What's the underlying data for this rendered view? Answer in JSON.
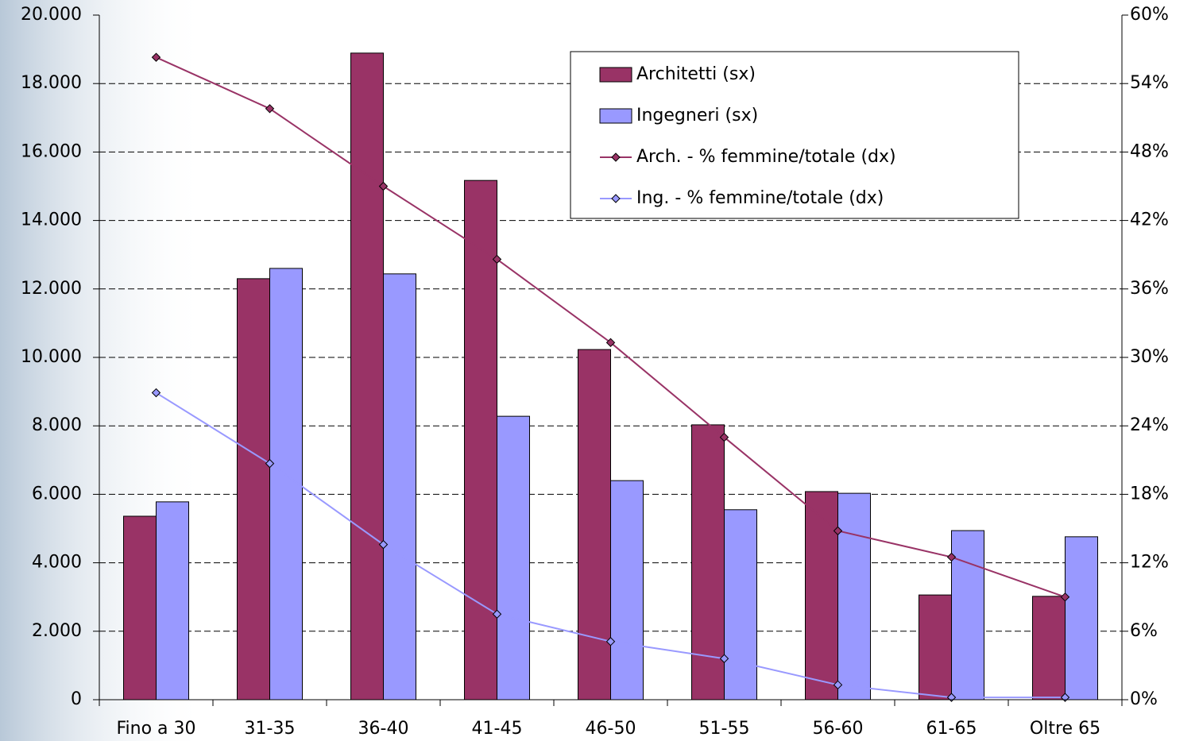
{
  "chart_data": {
    "type": "bar",
    "categories": [
      "Fino a 30",
      "31-35",
      "36-40",
      "41-45",
      "46-50",
      "51-55",
      "56-60",
      "61-65",
      "Oltre 65"
    ],
    "series": [
      {
        "name": "Architetti (sx)",
        "type": "bar",
        "color": "#993366",
        "values": [
          5360,
          12300,
          18890,
          15170,
          10230,
          8030,
          6080,
          3060,
          3020
        ]
      },
      {
        "name": "Ingegneri (sx)",
        "type": "bar",
        "color": "#9999ff",
        "values": [
          5780,
          12600,
          12440,
          8280,
          6400,
          5550,
          6030,
          4940,
          4760
        ]
      },
      {
        "name": "Arch. - % femmine/totale (dx)",
        "type": "line",
        "axis": "y2",
        "color": "#993366",
        "values": [
          56.3,
          51.8,
          45.0,
          38.6,
          31.3,
          23.0,
          14.8,
          12.5,
          9.0
        ]
      },
      {
        "name": "Ing. - % femmine/totale (dx)",
        "type": "line",
        "axis": "y2",
        "color": "#9999ff",
        "values": [
          26.9,
          20.7,
          13.6,
          7.5,
          5.1,
          3.6,
          1.3,
          0.2,
          0.2
        ]
      }
    ],
    "ylim": [
      0,
      20000
    ],
    "yticks": [
      0,
      {
        "value": 2000,
        "label": "2.000"
      },
      {
        "value": 4000,
        "label": "4.000"
      },
      {
        "value": 6000,
        "label": "6.000"
      },
      {
        "value": 8000,
        "label": "8.000"
      },
      {
        "value": 10000,
        "label": "10.000"
      },
      {
        "value": 12000,
        "label": "12.000"
      },
      {
        "value": 14000,
        "label": "14.000"
      },
      {
        "value": 16000,
        "label": "16.000"
      },
      {
        "value": 18000,
        "label": "18.000"
      },
      {
        "value": 20000,
        "label": "20.000"
      }
    ],
    "y2lim": [
      0,
      60
    ],
    "y2ticks": [
      {
        "value": 0,
        "label": "0%"
      },
      {
        "value": 6,
        "label": "6%"
      },
      {
        "value": 12,
        "label": "12%"
      },
      {
        "value": 18,
        "label": "18%"
      },
      {
        "value": 24,
        "label": "24%"
      },
      {
        "value": 30,
        "label": "30%"
      },
      {
        "value": 36,
        "label": "36%"
      },
      {
        "value": 42,
        "label": "42%"
      },
      {
        "value": 48,
        "label": "48%"
      },
      {
        "value": 54,
        "label": "54%"
      },
      {
        "value": 60,
        "label": "60%"
      }
    ],
    "grid": true,
    "legend": "upper-right"
  }
}
